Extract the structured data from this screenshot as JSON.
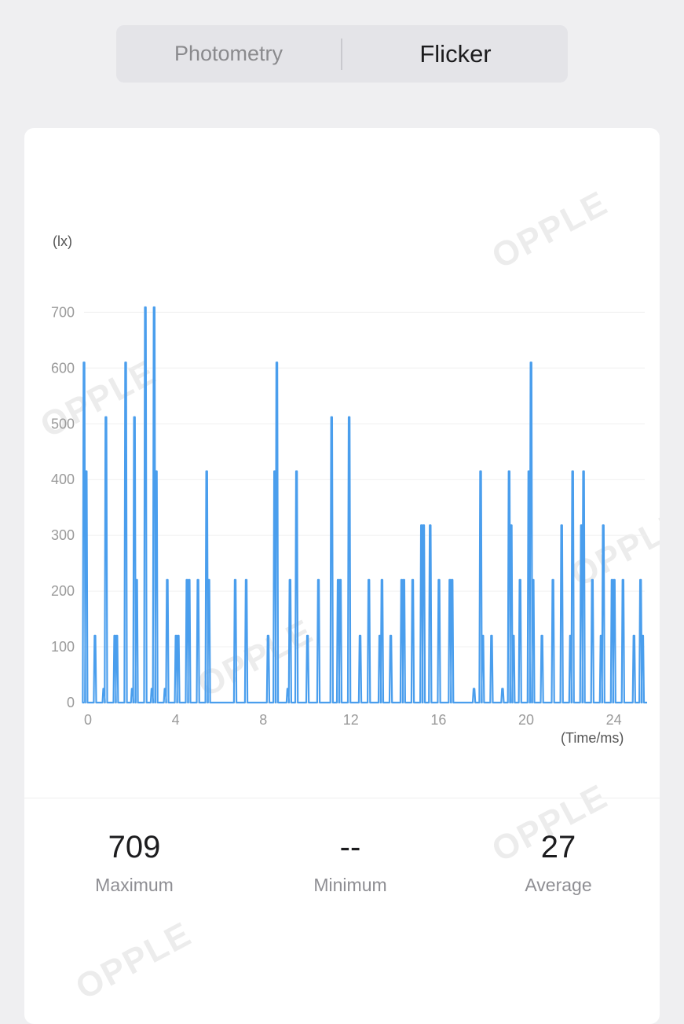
{
  "tabs": [
    {
      "label": "Photometry",
      "selected": false
    },
    {
      "label": "Flicker",
      "selected": true
    }
  ],
  "watermark": "OPPLE",
  "stats": [
    {
      "value": "709",
      "label": "Maximum"
    },
    {
      "value": "--",
      "label": "Minimum"
    },
    {
      "value": "27",
      "label": "Average"
    }
  ],
  "chart_data": {
    "type": "line",
    "ylabel": "(lx)",
    "xlabel": "(Time/ms)",
    "xlim": [
      0,
      25.7
    ],
    "ylim": [
      0,
      700
    ],
    "yticks": [
      0,
      100,
      200,
      300,
      400,
      500,
      600,
      700
    ],
    "xticks": [
      0,
      4,
      8,
      12,
      16,
      20,
      24
    ],
    "grid": true,
    "color": "#4a9eed",
    "peaks": [
      {
        "t": 0.0,
        "v": 610
      },
      {
        "t": 0.1,
        "v": 415
      },
      {
        "t": 0.5,
        "v": 120
      },
      {
        "t": 0.9,
        "v": 25
      },
      {
        "t": 1.0,
        "v": 512
      },
      {
        "t": 1.4,
        "v": 120
      },
      {
        "t": 1.5,
        "v": 120
      },
      {
        "t": 1.9,
        "v": 610
      },
      {
        "t": 2.2,
        "v": 25
      },
      {
        "t": 2.3,
        "v": 512
      },
      {
        "t": 2.4,
        "v": 220
      },
      {
        "t": 2.8,
        "v": 709
      },
      {
        "t": 3.1,
        "v": 25
      },
      {
        "t": 3.2,
        "v": 709
      },
      {
        "t": 3.3,
        "v": 415
      },
      {
        "t": 3.7,
        "v": 25
      },
      {
        "t": 3.8,
        "v": 220
      },
      {
        "t": 4.2,
        "v": 120
      },
      {
        "t": 4.3,
        "v": 120
      },
      {
        "t": 4.7,
        "v": 220
      },
      {
        "t": 4.8,
        "v": 220
      },
      {
        "t": 5.2,
        "v": 220
      },
      {
        "t": 5.6,
        "v": 415
      },
      {
        "t": 5.7,
        "v": 220
      },
      {
        "t": 6.9,
        "v": 220
      },
      {
        "t": 7.4,
        "v": 220
      },
      {
        "t": 8.4,
        "v": 120
      },
      {
        "t": 8.7,
        "v": 415
      },
      {
        "t": 8.8,
        "v": 610
      },
      {
        "t": 9.3,
        "v": 25
      },
      {
        "t": 9.4,
        "v": 220
      },
      {
        "t": 9.7,
        "v": 415
      },
      {
        "t": 10.2,
        "v": 120
      },
      {
        "t": 10.7,
        "v": 220
      },
      {
        "t": 11.3,
        "v": 512
      },
      {
        "t": 11.6,
        "v": 220
      },
      {
        "t": 11.7,
        "v": 220
      },
      {
        "t": 12.1,
        "v": 512
      },
      {
        "t": 12.6,
        "v": 120
      },
      {
        "t": 13.0,
        "v": 220
      },
      {
        "t": 13.5,
        "v": 120
      },
      {
        "t": 13.6,
        "v": 220
      },
      {
        "t": 14.0,
        "v": 120
      },
      {
        "t": 14.5,
        "v": 220
      },
      {
        "t": 14.6,
        "v": 220
      },
      {
        "t": 15.0,
        "v": 220
      },
      {
        "t": 15.4,
        "v": 318
      },
      {
        "t": 15.5,
        "v": 318
      },
      {
        "t": 15.8,
        "v": 318
      },
      {
        "t": 16.2,
        "v": 220
      },
      {
        "t": 16.7,
        "v": 220
      },
      {
        "t": 16.8,
        "v": 220
      },
      {
        "t": 17.8,
        "v": 25
      },
      {
        "t": 18.1,
        "v": 415
      },
      {
        "t": 18.2,
        "v": 120
      },
      {
        "t": 18.6,
        "v": 120
      },
      {
        "t": 19.1,
        "v": 25
      },
      {
        "t": 19.4,
        "v": 415
      },
      {
        "t": 19.5,
        "v": 318
      },
      {
        "t": 19.6,
        "v": 120
      },
      {
        "t": 19.9,
        "v": 220
      },
      {
        "t": 20.3,
        "v": 415
      },
      {
        "t": 20.4,
        "v": 610
      },
      {
        "t": 20.5,
        "v": 220
      },
      {
        "t": 20.9,
        "v": 120
      },
      {
        "t": 21.4,
        "v": 220
      },
      {
        "t": 21.8,
        "v": 318
      },
      {
        "t": 22.2,
        "v": 120
      },
      {
        "t": 22.3,
        "v": 415
      },
      {
        "t": 22.7,
        "v": 318
      },
      {
        "t": 22.8,
        "v": 415
      },
      {
        "t": 23.2,
        "v": 220
      },
      {
        "t": 23.6,
        "v": 120
      },
      {
        "t": 23.7,
        "v": 318
      },
      {
        "t": 24.1,
        "v": 220
      },
      {
        "t": 24.2,
        "v": 220
      },
      {
        "t": 24.6,
        "v": 220
      },
      {
        "t": 25.1,
        "v": 120
      },
      {
        "t": 25.4,
        "v": 220
      },
      {
        "t": 25.5,
        "v": 120
      }
    ]
  }
}
